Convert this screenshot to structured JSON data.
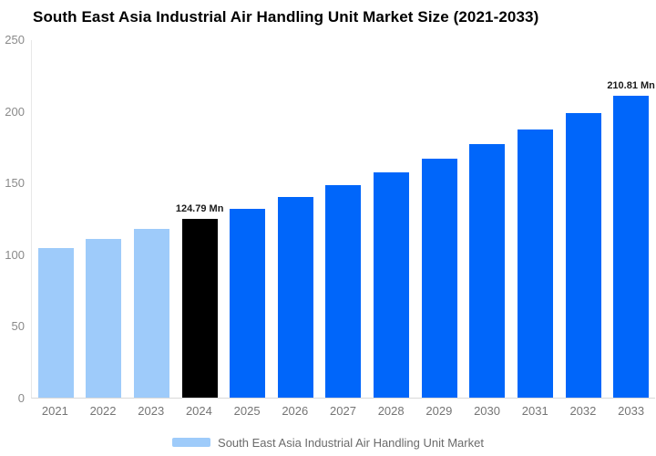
{
  "title": "South East Asia Industrial Air Handling Unit Market Size (2021-2033)",
  "chart_data": {
    "type": "bar",
    "title": "South East Asia Industrial Air Handling Unit Market Size (2021-2033)",
    "categories": [
      "2021",
      "2022",
      "2023",
      "2024",
      "2025",
      "2026",
      "2027",
      "2028",
      "2029",
      "2030",
      "2031",
      "2032",
      "2033"
    ],
    "values": [
      104.77,
      111.06,
      117.72,
      124.79,
      132.28,
      140.22,
      148.63,
      157.55,
      167.0,
      177.02,
      187.64,
      198.9,
      210.81
    ],
    "unit": "Mn",
    "point_labels": [
      "",
      "",
      "",
      "124.79 Mn",
      "",
      "",
      "",
      "",
      "",
      "",
      "",
      "",
      "210.81 Mn"
    ],
    "bar_colors": [
      "#9ECBFA",
      "#9ECBFA",
      "#9ECBFA",
      "#000000",
      "#0066FA",
      "#0066FA",
      "#0066FA",
      "#0066FA",
      "#0066FA",
      "#0066FA",
      "#0066FA",
      "#0066FA",
      "#0066FA"
    ],
    "xlabel": "",
    "ylabel": "",
    "ylim": [
      0,
      250
    ],
    "yticks": [
      0,
      50,
      100,
      150,
      200,
      250
    ],
    "grid": false,
    "legend_position": "bottom",
    "legend": [
      {
        "label": "South East Asia Industrial Air Handling Unit Market",
        "color": "#9ECBFA"
      }
    ]
  },
  "colors": {
    "background": "#ffffff",
    "title_text": "#000000",
    "axis_line": "#e8e8e8",
    "baseline": "#d9d9d9",
    "y_tick_text": "#8a8a8a",
    "x_tick_text": "#757575",
    "data_label_text": "#1a1a1a",
    "legend_text": "#6b6b6b",
    "bar_historical": "#9ECBFA",
    "bar_base_year": "#000000",
    "bar_forecast": "#0066FA"
  }
}
